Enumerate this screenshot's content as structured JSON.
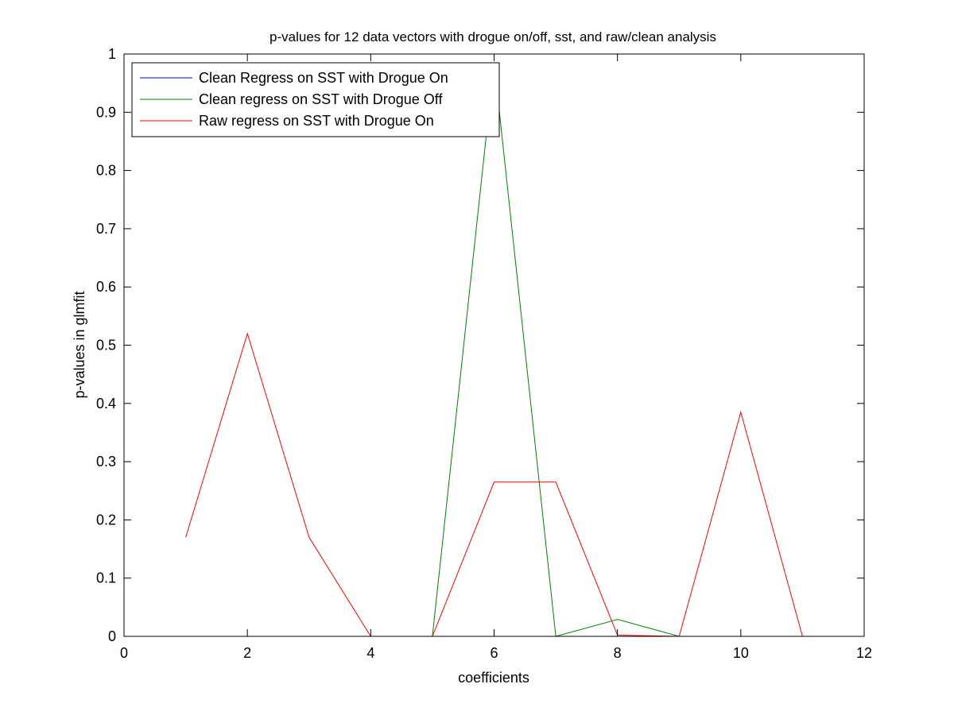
{
  "chart_data": {
    "type": "line",
    "title": "p-values for 12 data vectors with drogue on/off, sst, and raw/clean analysis",
    "xlabel": "coefficients",
    "ylabel": "p-values in glmfit",
    "xlim": [
      0,
      12
    ],
    "ylim": [
      0,
      1
    ],
    "xticks": [
      0,
      2,
      4,
      6,
      8,
      10,
      12
    ],
    "yticks": [
      0,
      0.1,
      0.2,
      0.3,
      0.4,
      0.5,
      0.6,
      0.7,
      0.8,
      0.9,
      1
    ],
    "xtick_labels": [
      "0",
      "2",
      "4",
      "6",
      "8",
      "10",
      "12"
    ],
    "ytick_labels": [
      "0",
      "0.1",
      "0.2",
      "0.3",
      "0.4",
      "0.5",
      "0.6",
      "0.7",
      "0.8",
      "0.9",
      "1"
    ],
    "grid": false,
    "legend_position": "top-left",
    "series": [
      {
        "name": "Clean Regress on SST with Drogue On",
        "color": "#0000ff",
        "points": [
          [
            5.5,
            0.0
          ],
          [
            6.5,
            0.0
          ]
        ]
      },
      {
        "name": "Clean regress on SST with Drogue Off",
        "color": "#008000",
        "points": [
          [
            4,
            0.0
          ],
          [
            5,
            0.0
          ],
          [
            6,
            0.985
          ],
          [
            7,
            0.0
          ],
          [
            8,
            0.029
          ],
          [
            9,
            0.0
          ],
          [
            10.5,
            0.0
          ],
          [
            11,
            0.0
          ]
        ]
      },
      {
        "name": "Raw regress on SST with Drogue On",
        "color": "#ff0000",
        "points": [
          [
            1,
            0.17
          ],
          [
            2,
            0.52
          ],
          [
            3,
            0.17
          ],
          [
            4,
            0.0
          ],
          [
            5,
            0.0
          ],
          [
            6,
            0.265
          ],
          [
            7,
            0.265
          ],
          [
            8,
            0.002
          ],
          [
            9,
            0.0
          ],
          [
            10,
            0.385
          ],
          [
            11,
            0.0
          ]
        ]
      }
    ]
  }
}
